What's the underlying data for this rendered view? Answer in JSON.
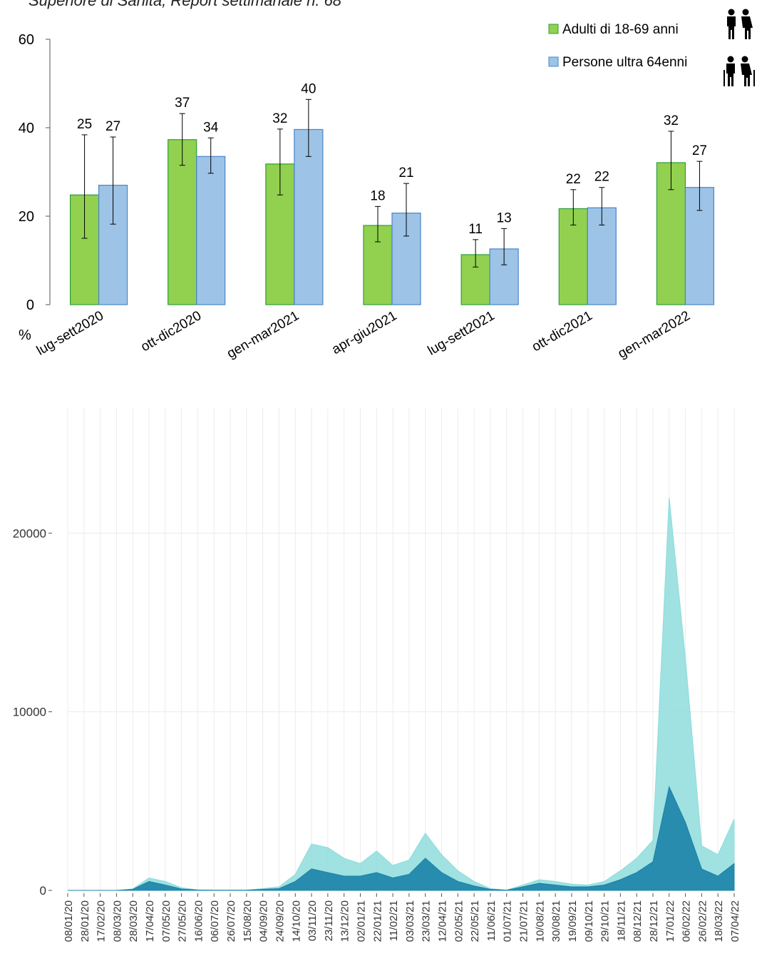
{
  "caption": "Superiore di Sanità, Report settimanale n. 68",
  "chart_data": [
    {
      "type": "bar",
      "unit_label": "%",
      "ylim": [
        0,
        60
      ],
      "yticks": [
        0,
        20,
        40,
        60
      ],
      "categories": [
        "lug-sett2020",
        "ott-dic2020",
        "gen-mar2021",
        "apr-giu2021",
        "lug-sett2021",
        "ott-dic2021",
        "gen-mar2022"
      ],
      "legend_position": "top-right",
      "series": [
        {
          "name": "Adulti di 18-69 anni",
          "color": "#92d050",
          "edge": "#2e9e3a",
          "values": [
            24.8,
            37.3,
            31.8,
            17.9,
            11.3,
            21.7,
            32.1
          ],
          "labels": [
            "25",
            "37",
            "32",
            "18",
            "11",
            "22",
            "32"
          ],
          "err_low": [
            15,
            31.5,
            24.8,
            14.2,
            8.5,
            18,
            26
          ],
          "err_high": [
            38.4,
            43.2,
            39.7,
            22.2,
            14.7,
            26,
            39.2
          ]
        },
        {
          "name": "Persone ultra 64enni",
          "color": "#9dc3e6",
          "edge": "#4a86c8",
          "values": [
            27,
            33.5,
            39.6,
            20.7,
            12.6,
            21.9,
            26.5
          ],
          "labels": [
            "27",
            "34",
            "40",
            "21",
            "13",
            "22",
            "27"
          ],
          "err_low": [
            18.2,
            29.7,
            33.5,
            15.5,
            9,
            18,
            21.3
          ],
          "err_high": [
            37.9,
            37.7,
            46.4,
            27.4,
            17.2,
            26.5,
            32.4
          ]
        }
      ]
    },
    {
      "type": "area",
      "ylim": [
        0,
        27000
      ],
      "yticks": [
        0,
        10000,
        20000
      ],
      "ytick_labels": [
        "0",
        "10000",
        "20000"
      ],
      "x_tick_labels": [
        "08/01/20",
        "28/01/20",
        "17/02/20",
        "08/03/20",
        "28/03/20",
        "17/04/20",
        "07/05/20",
        "27/05/20",
        "16/06/20",
        "06/07/20",
        "26/07/20",
        "15/08/20",
        "04/09/20",
        "24/09/20",
        "14/10/20",
        "03/11/20",
        "23/11/20",
        "13/12/20",
        "02/01/21",
        "22/01/21",
        "11/02/21",
        "03/03/21",
        "23/03/21",
        "12/04/21",
        "02/05/21",
        "22/05/21",
        "11/06/21",
        "01/07/21",
        "21/07/21",
        "10/08/21",
        "30/08/21",
        "19/09/21",
        "09/10/21",
        "29/10/21",
        "18/11/21",
        "08/12/21",
        "28/12/21",
        "17/01/22",
        "06/02/22",
        "26/02/22",
        "18/03/22",
        "07/04/22"
      ],
      "grid": true,
      "series": [
        {
          "color": "#8fdcdc",
          "values": [
            0,
            0,
            0,
            0,
            80,
            700,
            500,
            150,
            30,
            10,
            10,
            20,
            100,
            200,
            900,
            2600,
            2400,
            1800,
            1500,
            2200,
            1400,
            1700,
            3200,
            2000,
            1100,
            500,
            100,
            20,
            300,
            600,
            500,
            350,
            300,
            500,
            1100,
            1800,
            2800,
            22000,
            13000,
            2500,
            2000,
            4000
          ]
        },
        {
          "color": "#1a83a8",
          "values": [
            0,
            0,
            0,
            0,
            60,
            500,
            300,
            80,
            20,
            10,
            10,
            10,
            60,
            100,
            500,
            1200,
            1000,
            800,
            800,
            1000,
            700,
            900,
            1800,
            1000,
            500,
            250,
            60,
            10,
            200,
            400,
            300,
            200,
            200,
            300,
            600,
            1000,
            1600,
            5800,
            3800,
            1200,
            800,
            1500
          ]
        }
      ]
    }
  ]
}
